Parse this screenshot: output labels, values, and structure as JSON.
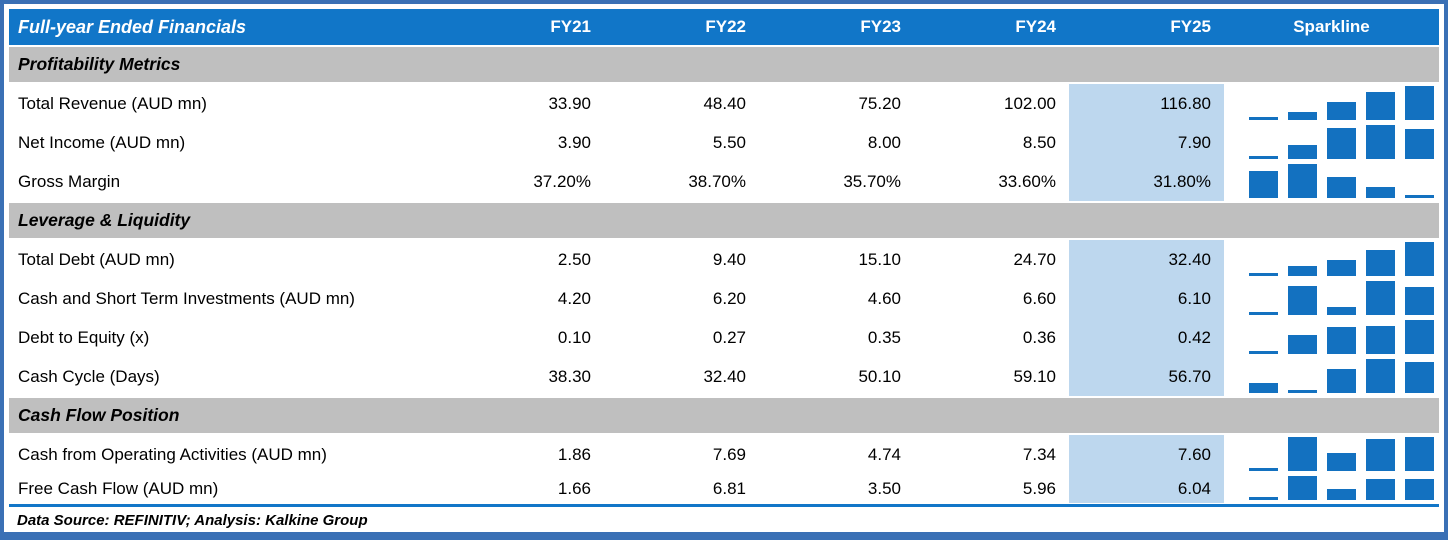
{
  "header": {
    "title": "Full-year Ended Financials",
    "columns": [
      "FY21",
      "FY22",
      "FY23",
      "FY24",
      "FY25"
    ],
    "sparkline_label": "Sparkline"
  },
  "sections": [
    {
      "label": "Profitability Metrics",
      "rows": [
        {
          "label": "Total Revenue (AUD mn)",
          "values": [
            "33.90",
            "48.40",
            "75.20",
            "102.00",
            "116.80"
          ],
          "numbers": [
            33.9,
            48.4,
            75.2,
            102.0,
            116.8
          ]
        },
        {
          "label": "Net Income (AUD mn)",
          "values": [
            "3.90",
            "5.50",
            "8.00",
            "8.50",
            "7.90"
          ],
          "numbers": [
            3.9,
            5.5,
            8.0,
            8.5,
            7.9
          ]
        },
        {
          "label": "Gross Margin",
          "values": [
            "37.20%",
            "38.70%",
            "35.70%",
            "33.60%",
            "31.80%"
          ],
          "numbers": [
            37.2,
            38.7,
            35.7,
            33.6,
            31.8
          ]
        }
      ]
    },
    {
      "label": "Leverage & Liquidity",
      "rows": [
        {
          "label": "Total Debt (AUD mn)",
          "values": [
            "2.50",
            "9.40",
            "15.10",
            "24.70",
            "32.40"
          ],
          "numbers": [
            2.5,
            9.4,
            15.1,
            24.7,
            32.4
          ]
        },
        {
          "label": "Cash and Short Term Investments (AUD mn)",
          "values": [
            "4.20",
            "6.20",
            "4.60",
            "6.60",
            "6.10"
          ],
          "numbers": [
            4.2,
            6.2,
            4.6,
            6.6,
            6.1
          ]
        },
        {
          "label": "Debt to Equity (x)",
          "values": [
            "0.10",
            "0.27",
            "0.35",
            "0.36",
            "0.42"
          ],
          "numbers": [
            0.1,
            0.27,
            0.35,
            0.36,
            0.42
          ]
        },
        {
          "label": "Cash Cycle (Days)",
          "values": [
            "38.30",
            "32.40",
            "50.10",
            "59.10",
            "56.70"
          ],
          "numbers": [
            38.3,
            32.4,
            50.1,
            59.1,
            56.7
          ]
        }
      ]
    },
    {
      "label": "Cash Flow Position",
      "rows": [
        {
          "label": "Cash from Operating Activities (AUD mn)",
          "values": [
            "1.86",
            "7.69",
            "4.74",
            "7.34",
            "7.60"
          ],
          "numbers": [
            1.86,
            7.69,
            4.74,
            7.34,
            7.6
          ]
        },
        {
          "label": "Free Cash Flow (AUD mn)",
          "values": [
            "1.66",
            "6.81",
            "3.50",
            "5.96",
            "6.04"
          ],
          "numbers": [
            1.66,
            6.81,
            3.5,
            5.96,
            6.04
          ],
          "compact": true
        }
      ]
    }
  ],
  "footer": {
    "text": "Data Source: REFINITIV; Analysis: Kalkine Group"
  },
  "colors": {
    "header_blue": "#1176C8",
    "sparkline_blue": "#1371C0",
    "fy25_highlight": "#BDD7EE",
    "section_gray": "#BFBFBF",
    "frame_blue": "#3A70B5",
    "text": "#000000",
    "header_text": "#FFFFFF"
  },
  "chart_data": {
    "type": "table",
    "title": "Full-year Ended Financials",
    "columns": [
      "FY21",
      "FY22",
      "FY23",
      "FY24",
      "FY25",
      "Sparkline"
    ],
    "sparklines": [
      {
        "type": "bar",
        "name": "Total Revenue (AUD mn)",
        "x": [
          "FY21",
          "FY22",
          "FY23",
          "FY24",
          "FY25"
        ],
        "values": [
          33.9,
          48.4,
          75.2,
          102.0,
          116.8
        ]
      },
      {
        "type": "bar",
        "name": "Net Income (AUD mn)",
        "x": [
          "FY21",
          "FY22",
          "FY23",
          "FY24",
          "FY25"
        ],
        "values": [
          3.9,
          5.5,
          8.0,
          8.5,
          7.9
        ]
      },
      {
        "type": "bar",
        "name": "Gross Margin (%)",
        "x": [
          "FY21",
          "FY22",
          "FY23",
          "FY24",
          "FY25"
        ],
        "values": [
          37.2,
          38.7,
          35.7,
          33.6,
          31.8
        ]
      },
      {
        "type": "bar",
        "name": "Total Debt (AUD mn)",
        "x": [
          "FY21",
          "FY22",
          "FY23",
          "FY24",
          "FY25"
        ],
        "values": [
          2.5,
          9.4,
          15.1,
          24.7,
          32.4
        ]
      },
      {
        "type": "bar",
        "name": "Cash and Short Term Investments (AUD mn)",
        "x": [
          "FY21",
          "FY22",
          "FY23",
          "FY24",
          "FY25"
        ],
        "values": [
          4.2,
          6.2,
          4.6,
          6.6,
          6.1
        ]
      },
      {
        "type": "bar",
        "name": "Debt to Equity (x)",
        "x": [
          "FY21",
          "FY22",
          "FY23",
          "FY24",
          "FY25"
        ],
        "values": [
          0.1,
          0.27,
          0.35,
          0.36,
          0.42
        ]
      },
      {
        "type": "bar",
        "name": "Cash Cycle (Days)",
        "x": [
          "FY21",
          "FY22",
          "FY23",
          "FY24",
          "FY25"
        ],
        "values": [
          38.3,
          32.4,
          50.1,
          59.1,
          56.7
        ]
      },
      {
        "type": "bar",
        "name": "Cash from Operating Activities (AUD mn)",
        "x": [
          "FY21",
          "FY22",
          "FY23",
          "FY24",
          "FY25"
        ],
        "values": [
          1.86,
          7.69,
          4.74,
          7.34,
          7.6
        ]
      },
      {
        "type": "bar",
        "name": "Free Cash Flow (AUD mn)",
        "x": [
          "FY21",
          "FY22",
          "FY23",
          "FY24",
          "FY25"
        ],
        "values": [
          1.66,
          6.81,
          3.5,
          5.96,
          6.04
        ]
      }
    ],
    "note": "Sparkline bar heights are min-max normalized per row"
  }
}
